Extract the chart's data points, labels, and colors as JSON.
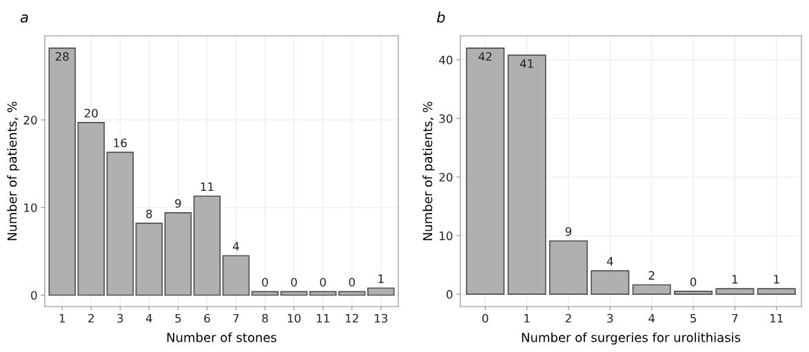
{
  "chart_data": [
    {
      "type": "bar",
      "title": "a",
      "xlabel": "Number of stones",
      "ylabel": "Number of patients, %",
      "categories": [
        "1",
        "2",
        "3",
        "4",
        "5",
        "6",
        "7",
        "8",
        "10",
        "11",
        "12",
        "13"
      ],
      "values": [
        28.2,
        19.7,
        16.3,
        8.2,
        9.4,
        11.3,
        4.5,
        0.4,
        0.4,
        0.4,
        0.4,
        0.8
      ],
      "value_labels": [
        "28",
        "20",
        "16",
        "8",
        "9",
        "11",
        "4",
        "0",
        "0",
        "0",
        "0",
        "1"
      ],
      "color": "#b0b0b0",
      "ylim": [
        -1.3,
        29.6
      ],
      "yticks": [
        0,
        10,
        20
      ],
      "grid": true
    },
    {
      "type": "bar",
      "title": "b",
      "xlabel": "Number of surgeries for urolithiasis",
      "ylabel": "Number of patients, %",
      "categories": [
        "0",
        "1",
        "2",
        "3",
        "4",
        "5",
        "7",
        "11"
      ],
      "values": [
        42.0,
        40.8,
        9.1,
        4.0,
        1.6,
        0.5,
        0.95,
        0.95
      ],
      "value_labels": [
        "42",
        "41",
        "9",
        "4",
        "2",
        "0",
        "1",
        "1"
      ],
      "color": "#b0b0b0",
      "ylim": [
        -2.1,
        44.1
      ],
      "yticks": [
        0,
        10,
        20,
        30,
        40
      ],
      "grid": true
    }
  ]
}
